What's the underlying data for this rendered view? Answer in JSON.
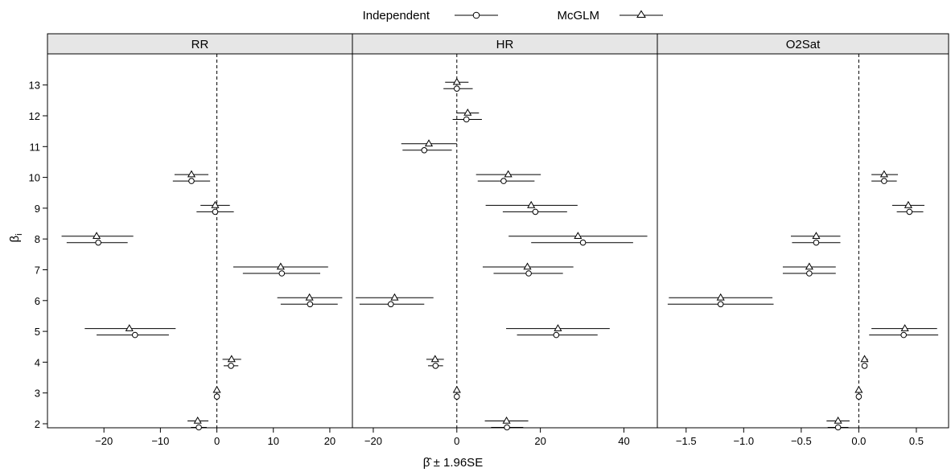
{
  "chart_data": {
    "type": "scatter",
    "legend": {
      "placement": "top",
      "entries": [
        {
          "label": "Independent",
          "marker": "circle"
        },
        {
          "label": "McGLM",
          "marker": "triangle"
        }
      ]
    },
    "xlabel": "β̂ ± 1.96SE",
    "ylabel": "βi",
    "ylabel_main": "β",
    "ylabel_sub": "i",
    "y_categories": [
      2,
      3,
      4,
      5,
      6,
      7,
      8,
      9,
      10,
      11,
      12,
      13
    ],
    "reference_line": 0,
    "grid": false,
    "panels": [
      {
        "title": "RR",
        "xlim": [
          -30,
          24
        ],
        "xticks": [
          -20,
          -10,
          0,
          10,
          20
        ],
        "xtick_labels": [
          "−20",
          "−10",
          "0",
          "10",
          "20"
        ],
        "series": [
          {
            "name": "Independent",
            "points": [
              {
                "y": 2,
                "est": -3.2,
                "lo": -4.6,
                "hi": -1.8
              },
              {
                "y": 3,
                "est": 0.0,
                "lo": -0.3,
                "hi": 0.3
              },
              {
                "y": 4,
                "est": 2.5,
                "lo": 1.2,
                "hi": 3.8
              },
              {
                "y": 5,
                "est": -14.5,
                "lo": -21.3,
                "hi": -8.5
              },
              {
                "y": 6,
                "est": 16.5,
                "lo": 11.3,
                "hi": 21.4
              },
              {
                "y": 7,
                "est": 11.5,
                "lo": 4.6,
                "hi": 18.3
              },
              {
                "y": 8,
                "est": -21.0,
                "lo": -26.6,
                "hi": -15.8
              },
              {
                "y": 9,
                "est": -0.3,
                "lo": -3.6,
                "hi": 3.0
              },
              {
                "y": 10,
                "est": -4.5,
                "lo": -7.8,
                "hi": -1.2
              },
              {
                "y": 11,
                "est": null,
                "lo": null,
                "hi": null
              },
              {
                "y": 12,
                "est": null,
                "lo": null,
                "hi": null
              },
              {
                "y": 13,
                "est": null,
                "lo": null,
                "hi": null
              }
            ]
          },
          {
            "name": "McGLM",
            "points": [
              {
                "y": 2,
                "est": -3.4,
                "lo": -5.2,
                "hi": -1.5
              },
              {
                "y": 3,
                "est": 0.0,
                "lo": -0.3,
                "hi": 0.3
              },
              {
                "y": 4,
                "est": 2.6,
                "lo": 1.0,
                "hi": 4.3
              },
              {
                "y": 5,
                "est": -15.5,
                "lo": -23.4,
                "hi": -7.3
              },
              {
                "y": 6,
                "est": 16.4,
                "lo": 10.7,
                "hi": 22.2
              },
              {
                "y": 7,
                "est": 11.3,
                "lo": 2.9,
                "hi": 19.7
              },
              {
                "y": 8,
                "est": -21.3,
                "lo": -27.5,
                "hi": -14.8
              },
              {
                "y": 9,
                "est": -0.3,
                "lo": -2.9,
                "hi": 2.3
              },
              {
                "y": 10,
                "est": -4.5,
                "lo": -7.5,
                "hi": -1.5
              },
              {
                "y": 11,
                "est": null,
                "lo": null,
                "hi": null
              },
              {
                "y": 12,
                "est": null,
                "lo": null,
                "hi": null
              },
              {
                "y": 13,
                "est": null,
                "lo": null,
                "hi": null
              }
            ]
          }
        ]
      },
      {
        "title": "HR",
        "xlim": [
          -25,
          48
        ],
        "xticks": [
          -20,
          0,
          20,
          40
        ],
        "xtick_labels": [
          "−20",
          "0",
          "20",
          "40"
        ],
        "series": [
          {
            "name": "Independent",
            "points": [
              {
                "y": 2,
                "est": 12.0,
                "lo": 8.2,
                "hi": 15.9
              },
              {
                "y": 3,
                "est": 0.0,
                "lo": -0.3,
                "hi": 0.3
              },
              {
                "y": 4,
                "est": -5.1,
                "lo": -6.9,
                "hi": -3.3
              },
              {
                "y": 5,
                "est": 23.8,
                "lo": 14.4,
                "hi": 33.7
              },
              {
                "y": 6,
                "est": -15.8,
                "lo": -23.3,
                "hi": -7.8
              },
              {
                "y": 7,
                "est": 17.2,
                "lo": 8.8,
                "hi": 25.4
              },
              {
                "y": 8,
                "est": 30.2,
                "lo": 17.8,
                "hi": 42.2
              },
              {
                "y": 9,
                "est": 18.8,
                "lo": 11.0,
                "hi": 26.4
              },
              {
                "y": 10,
                "est": 11.2,
                "lo": 5.0,
                "hi": 18.6
              },
              {
                "y": 11,
                "est": -7.8,
                "lo": -13.0,
                "hi": -1.2
              },
              {
                "y": 12,
                "est": 2.3,
                "lo": -1.0,
                "hi": 6.0
              },
              {
                "y": 13,
                "est": 0.0,
                "lo": -3.2,
                "hi": 3.8
              }
            ]
          },
          {
            "name": "McGLM",
            "points": [
              {
                "y": 2,
                "est": 11.9,
                "lo": 6.7,
                "hi": 17.1
              },
              {
                "y": 3,
                "est": 0.0,
                "lo": -0.3,
                "hi": 0.3
              },
              {
                "y": 4,
                "est": -5.2,
                "lo": -7.3,
                "hi": -3.1
              },
              {
                "y": 5,
                "est": 24.2,
                "lo": 11.8,
                "hi": 36.6
              },
              {
                "y": 6,
                "est": -14.9,
                "lo": -24.2,
                "hi": -5.6
              },
              {
                "y": 7,
                "est": 16.9,
                "lo": 6.2,
                "hi": 27.9
              },
              {
                "y": 8,
                "est": 29.0,
                "lo": 12.4,
                "hi": 45.6
              },
              {
                "y": 9,
                "est": 17.8,
                "lo": 6.9,
                "hi": 28.9
              },
              {
                "y": 10,
                "est": 12.3,
                "lo": 4.6,
                "hi": 20.1
              },
              {
                "y": 11,
                "est": -6.7,
                "lo": -13.3,
                "hi": 0.0
              },
              {
                "y": 12,
                "est": 2.6,
                "lo": -0.1,
                "hi": 5.3
              },
              {
                "y": 13,
                "est": 0.0,
                "lo": -2.8,
                "hi": 2.8
              }
            ]
          }
        ]
      },
      {
        "title": "O2Sat",
        "xlim": [
          -1.75,
          0.78
        ],
        "xticks": [
          -1.5,
          -1.0,
          -0.5,
          0.0,
          0.5
        ],
        "xtick_labels": [
          "−1.5",
          "−1.0",
          "−0.5",
          "0.0",
          "0.5"
        ],
        "series": [
          {
            "name": "Independent",
            "points": [
              {
                "y": 2,
                "est": -0.18,
                "lo": -0.27,
                "hi": -0.09
              },
              {
                "y": 3,
                "est": 0.0,
                "lo": -0.01,
                "hi": 0.01
              },
              {
                "y": 4,
                "est": 0.05,
                "lo": 0.03,
                "hi": 0.07
              },
              {
                "y": 5,
                "est": 0.39,
                "lo": 0.09,
                "hi": 0.69
              },
              {
                "y": 6,
                "est": -1.2,
                "lo": -1.66,
                "hi": -0.74
              },
              {
                "y": 7,
                "est": -0.43,
                "lo": -0.66,
                "hi": -0.2
              },
              {
                "y": 8,
                "est": -0.37,
                "lo": -0.58,
                "hi": -0.16
              },
              {
                "y": 9,
                "est": 0.44,
                "lo": 0.33,
                "hi": 0.56
              },
              {
                "y": 10,
                "est": 0.22,
                "lo": 0.11,
                "hi": 0.33
              },
              {
                "y": 11,
                "est": null,
                "lo": null,
                "hi": null
              },
              {
                "y": 12,
                "est": null,
                "lo": null,
                "hi": null
              },
              {
                "y": 13,
                "est": null,
                "lo": null,
                "hi": null
              }
            ]
          },
          {
            "name": "McGLM",
            "points": [
              {
                "y": 2,
                "est": -0.18,
                "lo": -0.28,
                "hi": -0.08
              },
              {
                "y": 3,
                "est": 0.0,
                "lo": -0.02,
                "hi": 0.02
              },
              {
                "y": 4,
                "est": 0.05,
                "lo": 0.03,
                "hi": 0.08
              },
              {
                "y": 5,
                "est": 0.4,
                "lo": 0.11,
                "hi": 0.68
              },
              {
                "y": 6,
                "est": -1.2,
                "lo": -1.65,
                "hi": -0.75
              },
              {
                "y": 7,
                "est": -0.43,
                "lo": -0.66,
                "hi": -0.2
              },
              {
                "y": 8,
                "est": -0.37,
                "lo": -0.59,
                "hi": -0.16
              },
              {
                "y": 9,
                "est": 0.43,
                "lo": 0.29,
                "hi": 0.57
              },
              {
                "y": 10,
                "est": 0.22,
                "lo": 0.11,
                "hi": 0.34
              },
              {
                "y": 11,
                "est": null,
                "lo": null,
                "hi": null
              },
              {
                "y": 12,
                "est": null,
                "lo": null,
                "hi": null
              },
              {
                "y": 13,
                "est": null,
                "lo": null,
                "hi": null
              }
            ]
          }
        ]
      }
    ]
  },
  "colors": {
    "strip_background": "#e6e6e6",
    "ink": "#000000",
    "background": "#ffffff"
  }
}
